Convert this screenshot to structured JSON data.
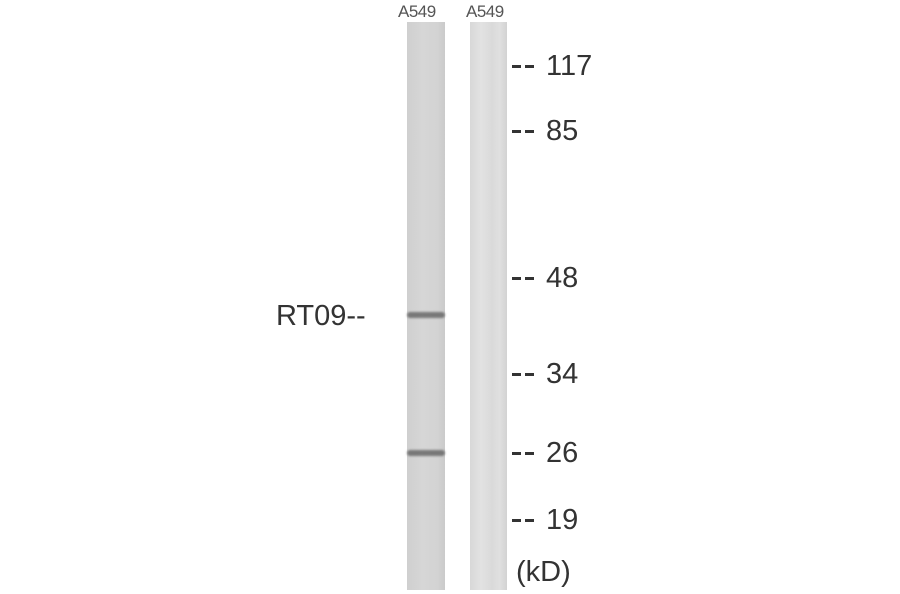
{
  "lanes": [
    {
      "label": "A549"
    },
    {
      "label": "A549"
    }
  ],
  "protein_label": "RT09--",
  "markers": [
    "117",
    "85",
    "48",
    "34",
    "26",
    "19"
  ],
  "unit": "(kD)"
}
